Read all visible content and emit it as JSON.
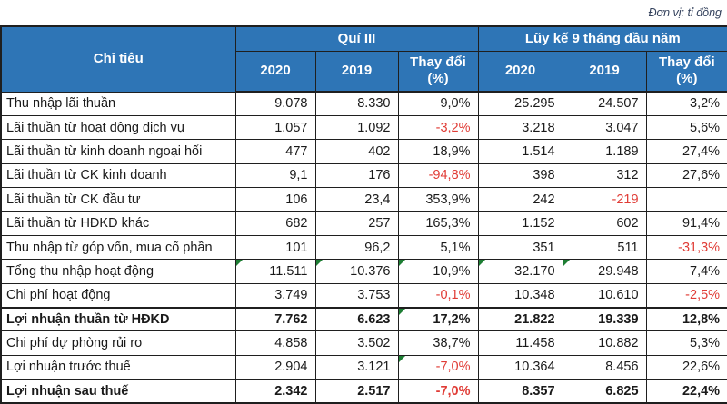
{
  "unit_note": "Đơn vị: tỉ đồng",
  "colors": {
    "header_bg": "#2e75b6",
    "header_text": "#ffffff",
    "negative": "#e03c36",
    "grid": "#1f1f1f",
    "triangle": "#1e7e34",
    "note_text": "#33415c"
  },
  "icons": {
    "error_indicator": "green-corner-triangle (Excel cell flag)"
  },
  "chart_data": {
    "type": "table",
    "title": "",
    "unit_note": "Đơn vị: tỉ đồng",
    "corner_header": "Chỉ tiêu",
    "column_groups": [
      {
        "label": "Quí III"
      },
      {
        "label": "Lũy kế 9 tháng đầu năm"
      }
    ],
    "sub_columns": [
      "2020",
      "2019",
      "Thay đổi (%)"
    ],
    "rows": [
      {
        "label": "Thu nhập lãi thuần",
        "values": [
          "9.078",
          "8.330",
          "9,0%",
          "25.295",
          "24.507",
          "3,2%"
        ]
      },
      {
        "label": "Lãi thuần từ hoạt động dịch vụ",
        "values": [
          "1.057",
          "1.092",
          "-3,2%",
          "3.218",
          "3.047",
          "5,6%"
        ]
      },
      {
        "label": "Lãi thuần từ kinh doanh ngoại hối",
        "values": [
          "477",
          "402",
          "18,9%",
          "1.514",
          "1.189",
          "27,4%"
        ]
      },
      {
        "label": "Lãi thuần từ CK kinh doanh",
        "values": [
          "9,1",
          "176",
          "-94,8%",
          "398",
          "312",
          "27,6%"
        ]
      },
      {
        "label": "Lãi thuần từ CK đầu tư",
        "values": [
          "106",
          "23,4",
          "353,9%",
          "242",
          "-219",
          ""
        ]
      },
      {
        "label": "Lãi thuần từ HĐKD khác",
        "values": [
          "682",
          "257",
          "165,3%",
          "1.152",
          "602",
          "91,4%"
        ]
      },
      {
        "label": "Thu nhập từ góp vốn, mua cổ phần",
        "values": [
          "101",
          "96,2",
          "5,1%",
          "351",
          "511",
          "-31,3%"
        ]
      },
      {
        "label": "Tổng thu nhập hoạt động",
        "values": [
          "11.511",
          "10.376",
          "10,9%",
          "32.170",
          "29.948",
          "7,4%"
        ]
      },
      {
        "label": "Chi phí hoạt động",
        "values": [
          "3.749",
          "3.753",
          "-0,1%",
          "10.348",
          "10.610",
          "-2,5%"
        ]
      },
      {
        "label": "Lợi nhuận thuần từ HĐKD",
        "values": [
          "7.762",
          "6.623",
          "17,2%",
          "21.822",
          "19.339",
          "12,8%"
        ]
      },
      {
        "label": "Chi phí dự phòng rủi ro",
        "values": [
          "4.858",
          "3.502",
          "38,7%",
          "11.458",
          "10.882",
          "5,3%"
        ]
      },
      {
        "label": "Lợi nhuận trước thuế",
        "values": [
          "2.904",
          "3.121",
          "-7,0%",
          "10.364",
          "8.456",
          "22,6%"
        ]
      },
      {
        "label": "Lợi nhuận sau thuế",
        "values": [
          "2.342",
          "2.517",
          "-7,0%",
          "8.357",
          "6.825",
          "22,4%"
        ]
      }
    ],
    "indicators": {
      "green_triangle_cells": [
        [
          7,
          0
        ],
        [
          7,
          1
        ],
        [
          7,
          2
        ],
        [
          7,
          3
        ],
        [
          7,
          4
        ],
        [
          9,
          2
        ],
        [
          11,
          2
        ]
      ]
    },
    "layout_hints": {
      "negative_values_red": true,
      "bold_rows": [
        "Lợi nhuận thuần từ HĐKD",
        "Lợi nhuận sau thuế"
      ],
      "grid": true
    }
  }
}
